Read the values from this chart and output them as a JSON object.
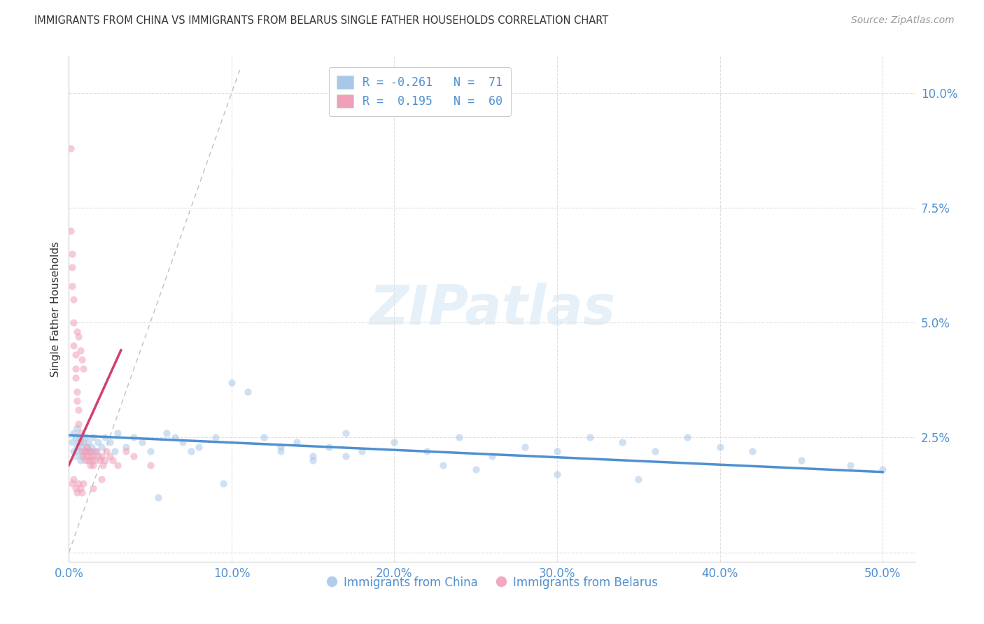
{
  "title": "IMMIGRANTS FROM CHINA VS IMMIGRANTS FROM BELARUS SINGLE FATHER HOUSEHOLDS CORRELATION CHART",
  "source": "Source: ZipAtlas.com",
  "ylabel": "Single Father Households",
  "china_color": "#a8c8e8",
  "belarus_color": "#f0a0b8",
  "china_line_color": "#5090d0",
  "belarus_line_color": "#d04070",
  "diagonal_color": "#c0c0c0",
  "grid_color": "#e0e0e0",
  "title_color": "#333333",
  "source_color": "#999999",
  "tick_color": "#5090d0",
  "watermark": "ZIPatlas",
  "legend_label_r_china": "R = -0.261   N =  71",
  "legend_label_r_belarus": "R =  0.195   N =  60",
  "legend_label_china": "Immigrants from China",
  "legend_label_belarus": "Immigrants from Belarus",
  "xlim": [
    0.0,
    0.52
  ],
  "ylim": [
    -0.002,
    0.108
  ],
  "xtick_values": [
    0.0,
    0.1,
    0.2,
    0.3,
    0.4,
    0.5
  ],
  "xtick_labels": [
    "0.0%",
    "10.0%",
    "20.0%",
    "30.0%",
    "40.0%",
    "50.0%"
  ],
  "ytick_values": [
    0.0,
    0.025,
    0.05,
    0.075,
    0.1
  ],
  "ytick_labels": [
    "",
    "2.5%",
    "5.0%",
    "7.5%",
    "10.0%"
  ],
  "china_trendline_x": [
    0.0,
    0.5
  ],
  "china_trendline_y": [
    0.0255,
    0.0175
  ],
  "belarus_trendline_x": [
    0.0,
    0.032
  ],
  "belarus_trendline_y": [
    0.019,
    0.044
  ],
  "dot_size": 55,
  "dot_alpha": 0.55,
  "china_scatter_x": [
    0.002,
    0.003,
    0.003,
    0.004,
    0.004,
    0.005,
    0.005,
    0.006,
    0.006,
    0.007,
    0.007,
    0.008,
    0.008,
    0.009,
    0.01,
    0.01,
    0.011,
    0.012,
    0.013,
    0.014,
    0.015,
    0.016,
    0.018,
    0.02,
    0.022,
    0.025,
    0.028,
    0.03,
    0.035,
    0.04,
    0.045,
    0.05,
    0.06,
    0.065,
    0.07,
    0.08,
    0.09,
    0.1,
    0.11,
    0.12,
    0.13,
    0.14,
    0.15,
    0.16,
    0.17,
    0.18,
    0.2,
    0.22,
    0.24,
    0.26,
    0.28,
    0.3,
    0.32,
    0.34,
    0.36,
    0.38,
    0.4,
    0.42,
    0.45,
    0.48,
    0.5,
    0.25,
    0.15,
    0.35,
    0.055,
    0.095,
    0.17,
    0.23,
    0.3,
    0.13,
    0.075
  ],
  "china_scatter_y": [
    0.024,
    0.022,
    0.026,
    0.021,
    0.025,
    0.023,
    0.027,
    0.022,
    0.024,
    0.02,
    0.025,
    0.023,
    0.021,
    0.024,
    0.022,
    0.025,
    0.023,
    0.024,
    0.022,
    0.023,
    0.025,
    0.022,
    0.024,
    0.023,
    0.025,
    0.024,
    0.022,
    0.026,
    0.023,
    0.025,
    0.024,
    0.022,
    0.026,
    0.025,
    0.024,
    0.023,
    0.025,
    0.037,
    0.035,
    0.025,
    0.022,
    0.024,
    0.021,
    0.023,
    0.026,
    0.022,
    0.024,
    0.022,
    0.025,
    0.021,
    0.023,
    0.022,
    0.025,
    0.024,
    0.022,
    0.025,
    0.023,
    0.022,
    0.02,
    0.019,
    0.018,
    0.018,
    0.02,
    0.016,
    0.012,
    0.015,
    0.021,
    0.019,
    0.017,
    0.023,
    0.022
  ],
  "belarus_scatter_x": [
    0.001,
    0.001,
    0.002,
    0.002,
    0.002,
    0.003,
    0.003,
    0.003,
    0.004,
    0.004,
    0.004,
    0.005,
    0.005,
    0.005,
    0.006,
    0.006,
    0.006,
    0.007,
    0.007,
    0.007,
    0.008,
    0.008,
    0.009,
    0.009,
    0.01,
    0.01,
    0.011,
    0.011,
    0.012,
    0.012,
    0.013,
    0.013,
    0.014,
    0.014,
    0.015,
    0.015,
    0.016,
    0.017,
    0.018,
    0.019,
    0.02,
    0.021,
    0.022,
    0.023,
    0.025,
    0.027,
    0.03,
    0.035,
    0.04,
    0.05,
    0.002,
    0.003,
    0.004,
    0.005,
    0.006,
    0.007,
    0.008,
    0.009,
    0.015,
    0.02
  ],
  "belarus_scatter_y": [
    0.088,
    0.07,
    0.065,
    0.058,
    0.062,
    0.055,
    0.05,
    0.045,
    0.043,
    0.04,
    0.038,
    0.035,
    0.033,
    0.048,
    0.031,
    0.028,
    0.047,
    0.026,
    0.024,
    0.044,
    0.022,
    0.042,
    0.021,
    0.04,
    0.02,
    0.022,
    0.021,
    0.023,
    0.02,
    0.022,
    0.021,
    0.019,
    0.022,
    0.02,
    0.021,
    0.019,
    0.02,
    0.022,
    0.021,
    0.02,
    0.021,
    0.019,
    0.02,
    0.022,
    0.021,
    0.02,
    0.019,
    0.022,
    0.021,
    0.019,
    0.015,
    0.016,
    0.014,
    0.013,
    0.015,
    0.014,
    0.013,
    0.015,
    0.014,
    0.016
  ]
}
